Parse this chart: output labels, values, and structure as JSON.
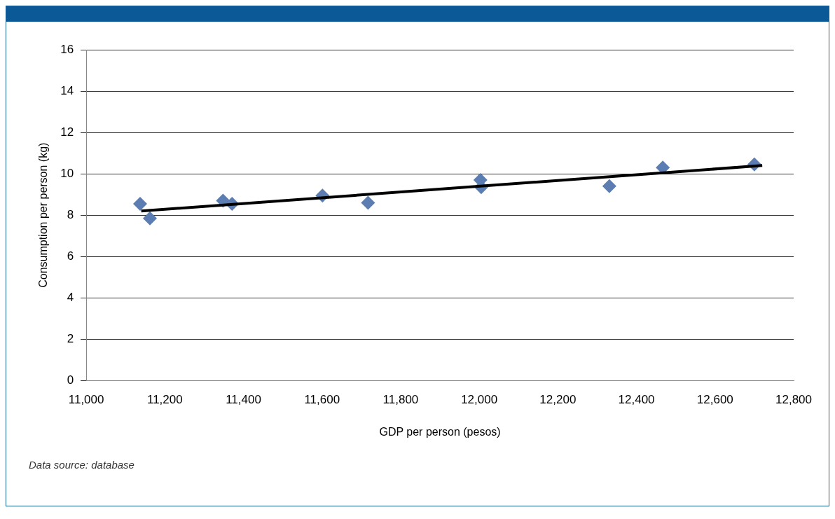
{
  "chart_data": {
    "type": "scatter",
    "xlabel": "GDP per person (pesos)",
    "ylabel": "Consumption per person (kg)",
    "xlim": [
      11000,
      12800
    ],
    "xticks": [
      {
        "value": 11000,
        "label": "11,000"
      },
      {
        "value": 11200,
        "label": "11,200"
      },
      {
        "value": 11400,
        "label": "11,400"
      },
      {
        "value": 11600,
        "label": "11,600"
      },
      {
        "value": 11800,
        "label": "11,800"
      },
      {
        "value": 12000,
        "label": "12,000"
      },
      {
        "value": 12200,
        "label": "12,200"
      },
      {
        "value": 12400,
        "label": "12,400"
      },
      {
        "value": 12600,
        "label": "12,600"
      },
      {
        "value": 12800,
        "label": "12,800"
      }
    ],
    "ylim": [
      0,
      16
    ],
    "yticks": [
      0,
      2,
      4,
      6,
      8,
      10,
      12,
      14,
      16
    ],
    "grid": "y",
    "legend": false,
    "marker": "diamond",
    "series": [
      {
        "type": "scatter",
        "color": "#5b7db1",
        "x": [
          11137,
          11162,
          11348,
          11371,
          11601,
          11717,
          12003,
          12005,
          12331,
          12467,
          12700
        ],
        "values": [
          8.55,
          7.85,
          8.7,
          8.55,
          8.95,
          8.6,
          9.7,
          9.35,
          9.4,
          10.3,
          10.45
        ]
      },
      {
        "type": "line",
        "color": "#000000",
        "x": [
          11140,
          12720
        ],
        "values": [
          8.2,
          10.4
        ],
        "marker": "none"
      }
    ],
    "annotations": [
      "Data source: database"
    ]
  }
}
